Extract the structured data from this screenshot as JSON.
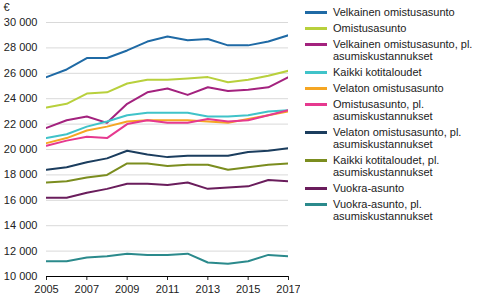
{
  "chart_data": {
    "type": "line",
    "y_label": "€",
    "x": [
      2005,
      2006,
      2007,
      2008,
      2009,
      2010,
      2011,
      2012,
      2013,
      2014,
      2015,
      2016,
      2017
    ],
    "xlim": [
      2005,
      2017
    ],
    "xticks": [
      2005,
      2007,
      2009,
      2011,
      2013,
      2015,
      2017
    ],
    "ylim": [
      10000,
      30000
    ],
    "yticks": [
      {
        "value": 10000,
        "label": "10 000"
      },
      {
        "value": 12000,
        "label": "12 000"
      },
      {
        "value": 14000,
        "label": "14 000"
      },
      {
        "value": 16000,
        "label": "16 000"
      },
      {
        "value": 18000,
        "label": "18 000"
      },
      {
        "value": 20000,
        "label": "20 000"
      },
      {
        "value": 22000,
        "label": "22 000"
      },
      {
        "value": 24000,
        "label": "24 000"
      },
      {
        "value": 26000,
        "label": "26 000"
      },
      {
        "value": 28000,
        "label": "28 000"
      },
      {
        "value": 30000,
        "label": "30 000"
      }
    ],
    "grid": true,
    "legend": "right",
    "series": [
      {
        "name": "Velkainen omistusasunto",
        "color": "#1f6aa5",
        "values": [
          25700,
          26300,
          27200,
          27200,
          27800,
          28500,
          28900,
          28600,
          28700,
          28200,
          28200,
          28500,
          29000
        ]
      },
      {
        "name": "Omistusasunto",
        "color": "#b8d03c",
        "values": [
          23300,
          23600,
          24400,
          24500,
          25200,
          25500,
          25500,
          25600,
          25700,
          25300,
          25500,
          25800,
          26200
        ]
      },
      {
        "name": "Velkainen omistusasunto, pl. asumiskustannukset",
        "color": "#a3227e",
        "values": [
          21700,
          22300,
          22600,
          22100,
          23600,
          24500,
          24800,
          24300,
          24900,
          24600,
          24700,
          24900,
          25700
        ]
      },
      {
        "name": "Kaikki kotitaloudet",
        "color": "#40c3c9",
        "values": [
          20900,
          21200,
          21800,
          22200,
          22700,
          22900,
          22900,
          22900,
          22600,
          22600,
          22700,
          23000,
          23100
        ]
      },
      {
        "name": "Velaton omistusasunto",
        "color": "#f5a623",
        "values": [
          20500,
          20900,
          21500,
          21800,
          22200,
          22300,
          22300,
          22300,
          22200,
          22100,
          22400,
          22700,
          23000
        ]
      },
      {
        "name": "Omistusasunto, pl. asumiskustannukset",
        "color": "#e6398f",
        "values": [
          20300,
          20700,
          21000,
          20900,
          22000,
          22300,
          22100,
          22100,
          22400,
          22200,
          22300,
          22700,
          23100
        ]
      },
      {
        "name": "Velaton omistusasunto, pl. asumiskustannukset",
        "color": "#1b3d5e",
        "values": [
          18400,
          18600,
          19000,
          19300,
          19900,
          19600,
          19400,
          19500,
          19500,
          19500,
          19800,
          19900,
          20100
        ]
      },
      {
        "name": "Kaikki kotitaloudet, pl. asumiskustannukset",
        "color": "#7b8d1f",
        "values": [
          17400,
          17500,
          17800,
          18000,
          18900,
          18900,
          18700,
          18800,
          18800,
          18400,
          18600,
          18800,
          18900
        ]
      },
      {
        "name": "Vuokra-asunto",
        "color": "#6a1d5c",
        "values": [
          16200,
          16200,
          16600,
          16900,
          17300,
          17300,
          17200,
          17400,
          16900,
          17000,
          17100,
          17600,
          17500
        ]
      },
      {
        "name": "Vuokra-asunto, pl. asumiskustannukset",
        "color": "#2b8a8c",
        "values": [
          11200,
          11200,
          11500,
          11600,
          11800,
          11700,
          11700,
          11800,
          11100,
          11000,
          11200,
          11700,
          11600
        ]
      }
    ]
  }
}
